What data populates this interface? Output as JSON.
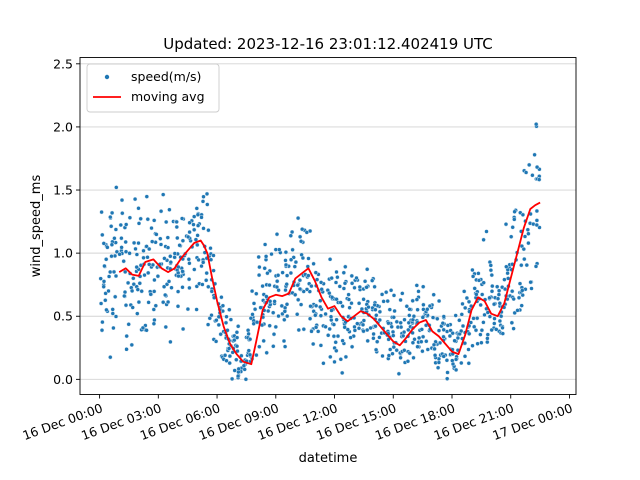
{
  "chart_data": {
    "type": "scatter",
    "title": "Updated: 2023-12-16 23:01:12.402419 UTC",
    "xlabel": "datetime",
    "ylabel": "wind_speed_ms",
    "xlim": [
      "2023-12-15T23:00",
      "2023-12-17T00:20"
    ],
    "ylim": [
      -0.12,
      2.55
    ],
    "grid": "horizontal",
    "legend_position": "top-left",
    "x_ticks": [
      {
        "time": "2023-12-16T00:00",
        "label": "16 Dec 00:00"
      },
      {
        "time": "2023-12-16T03:00",
        "label": "16 Dec 03:00"
      },
      {
        "time": "2023-12-16T06:00",
        "label": "16 Dec 06:00"
      },
      {
        "time": "2023-12-16T09:00",
        "label": "16 Dec 09:00"
      },
      {
        "time": "2023-12-16T12:00",
        "label": "16 Dec 12:00"
      },
      {
        "time": "2023-12-16T15:00",
        "label": "16 Dec 15:00"
      },
      {
        "time": "2023-12-16T18:00",
        "label": "16 Dec 18:00"
      },
      {
        "time": "2023-12-16T21:00",
        "label": "16 Dec 21:00"
      },
      {
        "time": "2023-12-17T00:00",
        "label": "17 Dec 00:00"
      }
    ],
    "y_ticks": [
      0.0,
      0.5,
      1.0,
      1.5,
      2.0,
      2.5
    ],
    "y_tick_labels": [
      "0.0",
      "0.5",
      "1.0",
      "1.5",
      "2.0",
      "2.5"
    ],
    "series": [
      {
        "name": "speed(m/s)",
        "kind": "scatter",
        "color": "#1f77b4",
        "note_estimated_envelope": true,
        "x": [
          "2023-12-16T00:00",
          "2023-12-16T00:30",
          "2023-12-16T01:00",
          "2023-12-16T01:30",
          "2023-12-16T02:00",
          "2023-12-16T02:30",
          "2023-12-16T03:00",
          "2023-12-16T03:30",
          "2023-12-16T04:00",
          "2023-12-16T04:30",
          "2023-12-16T05:00",
          "2023-12-16T05:30",
          "2023-12-16T06:00",
          "2023-12-16T06:30",
          "2023-12-16T07:00",
          "2023-12-16T07:30",
          "2023-12-16T08:00",
          "2023-12-16T08:30",
          "2023-12-16T09:00",
          "2023-12-16T09:30",
          "2023-12-16T10:00",
          "2023-12-16T10:30",
          "2023-12-16T11:00",
          "2023-12-16T11:30",
          "2023-12-16T12:00",
          "2023-12-16T12:30",
          "2023-12-16T13:00",
          "2023-12-16T13:30",
          "2023-12-16T14:00",
          "2023-12-16T14:30",
          "2023-12-16T15:00",
          "2023-12-16T15:30",
          "2023-12-16T16:00",
          "2023-12-16T16:30",
          "2023-12-16T17:00",
          "2023-12-16T17:30",
          "2023-12-16T18:00",
          "2023-12-16T18:30",
          "2023-12-16T19:00",
          "2023-12-16T19:30",
          "2023-12-16T20:00",
          "2023-12-16T20:30",
          "2023-12-16T21:00",
          "2023-12-16T21:30",
          "2023-12-16T22:00",
          "2023-12-16T22:30"
        ],
        "y_center": [
          0.75,
          0.85,
          0.85,
          0.8,
          0.9,
          0.95,
          0.85,
          0.85,
          0.95,
          1.05,
          1.1,
          0.95,
          0.55,
          0.3,
          0.2,
          0.12,
          0.55,
          0.65,
          0.7,
          0.75,
          0.85,
          0.8,
          0.65,
          0.55,
          0.52,
          0.5,
          0.52,
          0.5,
          0.45,
          0.4,
          0.35,
          0.3,
          0.4,
          0.48,
          0.4,
          0.3,
          0.22,
          0.3,
          0.55,
          0.65,
          0.6,
          0.55,
          0.75,
          1.05,
          1.35,
          1.4
        ],
        "y_spread": [
          0.45,
          0.5,
          0.5,
          0.45,
          0.45,
          0.45,
          0.45,
          0.4,
          0.4,
          0.4,
          0.4,
          0.45,
          0.3,
          0.2,
          0.2,
          0.15,
          0.4,
          0.35,
          0.35,
          0.4,
          0.4,
          0.4,
          0.35,
          0.35,
          0.35,
          0.3,
          0.3,
          0.3,
          0.3,
          0.25,
          0.25,
          0.25,
          0.25,
          0.25,
          0.25,
          0.25,
          0.2,
          0.25,
          0.3,
          0.35,
          0.35,
          0.3,
          0.45,
          0.55,
          0.5,
          0.45
        ]
      },
      {
        "name": "moving avg",
        "kind": "line",
        "color": "#ff0000",
        "x": [
          "2023-12-16T01:00",
          "2023-12-16T01:20",
          "2023-12-16T01:40",
          "2023-12-16T02:00",
          "2023-12-16T02:20",
          "2023-12-16T02:45",
          "2023-12-16T03:10",
          "2023-12-16T03:30",
          "2023-12-16T03:50",
          "2023-12-16T04:10",
          "2023-12-16T04:30",
          "2023-12-16T04:50",
          "2023-12-16T05:10",
          "2023-12-16T05:20",
          "2023-12-16T05:30",
          "2023-12-16T05:45",
          "2023-12-16T06:00",
          "2023-12-16T06:20",
          "2023-12-16T06:40",
          "2023-12-16T07:00",
          "2023-12-16T07:20",
          "2023-12-16T07:45",
          "2023-12-16T08:00",
          "2023-12-16T08:20",
          "2023-12-16T08:40",
          "2023-12-16T09:00",
          "2023-12-16T09:20",
          "2023-12-16T09:40",
          "2023-12-16T10:00",
          "2023-12-16T10:20",
          "2023-12-16T10:40",
          "2023-12-16T11:00",
          "2023-12-16T11:20",
          "2023-12-16T11:40",
          "2023-12-16T12:00",
          "2023-12-16T12:20",
          "2023-12-16T12:40",
          "2023-12-16T13:00",
          "2023-12-16T13:20",
          "2023-12-16T13:40",
          "2023-12-16T14:00",
          "2023-12-16T14:20",
          "2023-12-16T14:40",
          "2023-12-16T15:00",
          "2023-12-16T15:20",
          "2023-12-16T15:40",
          "2023-12-16T16:00",
          "2023-12-16T16:20",
          "2023-12-16T16:40",
          "2023-12-16T17:00",
          "2023-12-16T17:20",
          "2023-12-16T17:40",
          "2023-12-16T18:00",
          "2023-12-16T18:20",
          "2023-12-16T18:40",
          "2023-12-16T19:00",
          "2023-12-16T19:20",
          "2023-12-16T19:40",
          "2023-12-16T20:00",
          "2023-12-16T20:20",
          "2023-12-16T20:40",
          "2023-12-16T21:00",
          "2023-12-16T21:20",
          "2023-12-16T21:40",
          "2023-12-16T22:00",
          "2023-12-16T22:15",
          "2023-12-16T22:30"
        ],
        "y": [
          0.85,
          0.88,
          0.83,
          0.82,
          0.93,
          0.95,
          0.88,
          0.85,
          0.88,
          0.96,
          1.02,
          1.08,
          1.1,
          1.06,
          1.0,
          0.8,
          0.62,
          0.42,
          0.28,
          0.2,
          0.14,
          0.12,
          0.3,
          0.55,
          0.65,
          0.67,
          0.66,
          0.68,
          0.8,
          0.84,
          0.88,
          0.78,
          0.65,
          0.56,
          0.58,
          0.5,
          0.46,
          0.5,
          0.54,
          0.52,
          0.48,
          0.42,
          0.36,
          0.3,
          0.27,
          0.33,
          0.4,
          0.45,
          0.47,
          0.38,
          0.34,
          0.28,
          0.22,
          0.2,
          0.35,
          0.55,
          0.65,
          0.62,
          0.52,
          0.5,
          0.6,
          0.8,
          1.0,
          1.2,
          1.35,
          1.38,
          1.4
        ]
      }
    ]
  }
}
